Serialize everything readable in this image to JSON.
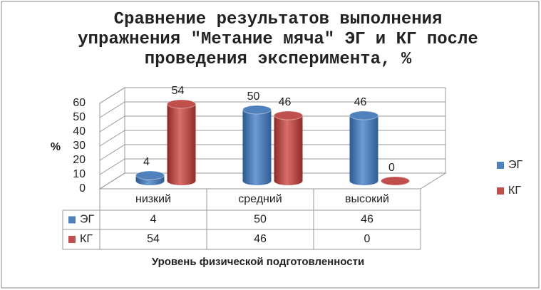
{
  "chart_data": {
    "type": "bar3d",
    "title": "Сравнение результатов выполнения упражнения \"Метание мяча\" ЭГ и КГ после проведения эксперимента, %",
    "y_label": "%",
    "x_label": "Уровень физической подготовленности",
    "categories": [
      "низкий",
      "средний",
      "высокий"
    ],
    "series": [
      {
        "name": "ЭГ",
        "color": "#4f81bd",
        "values": [
          4,
          50,
          46
        ]
      },
      {
        "name": "КГ",
        "color": "#c0504d",
        "values": [
          54,
          46,
          0
        ]
      }
    ],
    "ylim": [
      0,
      60
    ],
    "yticks": [
      0,
      10,
      20,
      30,
      40,
      50,
      60
    ],
    "grid": true,
    "legend": "right",
    "data_table": true
  }
}
